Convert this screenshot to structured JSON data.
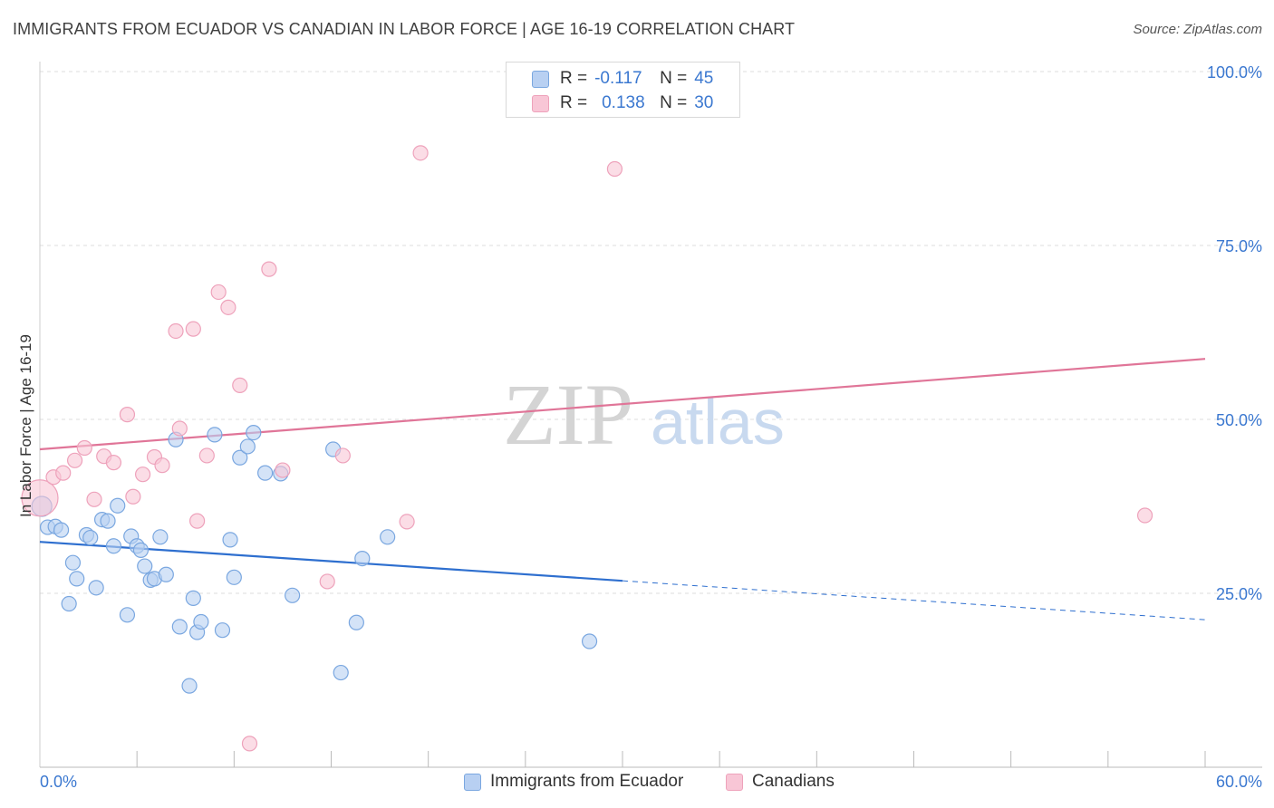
{
  "title": "IMMIGRANTS FROM ECUADOR VS CANADIAN IN LABOR FORCE | AGE 16-19 CORRELATION CHART",
  "source": "Source: ZipAtlas.com",
  "watermark": {
    "zip": "ZIP",
    "atlas": "atlas"
  },
  "legend_stats": [
    {
      "r_label": "R =",
      "r_value": "-0.117",
      "n_label": "N =",
      "n_value": "45"
    },
    {
      "r_label": "R =",
      "r_value": "0.138",
      "n_label": "N =",
      "n_value": "30"
    }
  ],
  "bottom_legend": [
    "Immigrants from Ecuador",
    "Canadians"
  ],
  "colors": {
    "blue_fill": "#b8d0f2",
    "blue_stroke": "#7aa7e0",
    "blue_line": "#2e6fcf",
    "pink_fill": "#f8c6d6",
    "pink_stroke": "#eea2bb",
    "pink_line": "#e07598",
    "tick_label": "#3b78d0",
    "grid": "#dddddd"
  },
  "chart_data": {
    "type": "scatter",
    "title": "IMMIGRANTS FROM ECUADOR VS CANADIAN IN LABOR FORCE | AGE 16-19 CORRELATION CHART",
    "xlabel": "",
    "ylabel": "In Labor Force | Age 16-19",
    "xlim": [
      0,
      60
    ],
    "ylim": [
      0,
      100
    ],
    "x_tick_labels": [
      "0.0%",
      "60.0%"
    ],
    "y_ticks": [
      25,
      50,
      75,
      100
    ],
    "y_tick_labels": [
      "25.0%",
      "50.0%",
      "75.0%",
      "100.0%"
    ],
    "grid": true,
    "series": [
      {
        "name": "Immigrants from Ecuador",
        "color": "blue",
        "points": [
          [
            0.1,
            37.5
          ],
          [
            0.4,
            34.5
          ],
          [
            0.8,
            34.6
          ],
          [
            1.1,
            34.1
          ],
          [
            1.5,
            23.5
          ],
          [
            1.7,
            29.4
          ],
          [
            1.9,
            27.1
          ],
          [
            2.4,
            33.4
          ],
          [
            2.6,
            33.0
          ],
          [
            2.9,
            25.8
          ],
          [
            3.2,
            35.6
          ],
          [
            3.5,
            35.4
          ],
          [
            3.8,
            31.8
          ],
          [
            4.0,
            37.6
          ],
          [
            4.5,
            21.9
          ],
          [
            4.7,
            33.2
          ],
          [
            5.0,
            31.8
          ],
          [
            5.2,
            31.2
          ],
          [
            5.4,
            28.9
          ],
          [
            5.7,
            26.9
          ],
          [
            5.9,
            27.1
          ],
          [
            6.2,
            33.1
          ],
          [
            6.5,
            27.7
          ],
          [
            7.0,
            47.1
          ],
          [
            7.2,
            20.2
          ],
          [
            7.7,
            11.7
          ],
          [
            7.9,
            24.3
          ],
          [
            8.1,
            19.4
          ],
          [
            8.3,
            20.9
          ],
          [
            9.0,
            47.8
          ],
          [
            9.4,
            19.7
          ],
          [
            9.8,
            32.7
          ],
          [
            10.0,
            27.3
          ],
          [
            10.3,
            44.5
          ],
          [
            10.7,
            46.1
          ],
          [
            11.0,
            48.1
          ],
          [
            11.6,
            42.3
          ],
          [
            12.4,
            42.2
          ],
          [
            13.0,
            24.7
          ],
          [
            15.1,
            45.7
          ],
          [
            15.5,
            13.6
          ],
          [
            16.3,
            20.8
          ],
          [
            16.6,
            30.0
          ],
          [
            17.9,
            33.1
          ],
          [
            28.3,
            18.1
          ]
        ],
        "trend": {
          "x": [
            0,
            60
          ],
          "y": [
            32.4,
            21.2
          ],
          "solid_until": 30
        }
      },
      {
        "name": "Canadians",
        "color": "pink",
        "points": [
          [
            0.0,
            38.7
          ],
          [
            0.7,
            41.7
          ],
          [
            1.2,
            42.3
          ],
          [
            1.8,
            44.1
          ],
          [
            2.3,
            45.9
          ],
          [
            2.8,
            38.5
          ],
          [
            3.3,
            44.7
          ],
          [
            3.8,
            43.8
          ],
          [
            4.5,
            50.7
          ],
          [
            4.8,
            38.9
          ],
          [
            5.3,
            42.1
          ],
          [
            5.9,
            44.6
          ],
          [
            6.3,
            43.4
          ],
          [
            7.0,
            62.7
          ],
          [
            7.2,
            48.7
          ],
          [
            7.9,
            63.0
          ],
          [
            8.1,
            35.4
          ],
          [
            8.6,
            44.8
          ],
          [
            9.2,
            68.3
          ],
          [
            9.7,
            66.1
          ],
          [
            10.3,
            54.9
          ],
          [
            10.8,
            3.4
          ],
          [
            11.8,
            71.6
          ],
          [
            12.5,
            42.7
          ],
          [
            14.8,
            26.7
          ],
          [
            15.6,
            44.8
          ],
          [
            18.9,
            35.3
          ],
          [
            19.6,
            88.3
          ],
          [
            29.6,
            86.0
          ],
          [
            56.9,
            36.2
          ]
        ],
        "trend": {
          "x": [
            0,
            60
          ],
          "y": [
            45.7,
            58.7
          ],
          "solid_until": 60
        }
      }
    ]
  }
}
